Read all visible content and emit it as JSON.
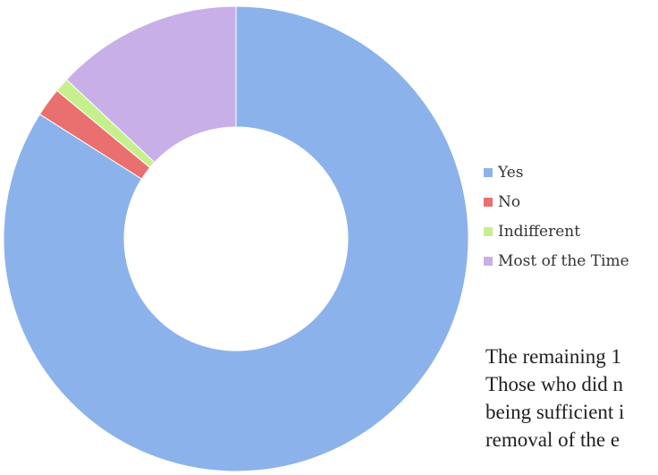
{
  "chart_data": {
    "type": "pie",
    "donut": true,
    "title": "",
    "categories": [
      "Yes",
      "No",
      "Indifferent",
      "Most of the Time"
    ],
    "values": [
      84,
      2,
      1,
      13
    ],
    "colors": [
      "#8cb2ec",
      "#ea6f6f",
      "#c6f08e",
      "#c9afe8"
    ],
    "legend_position": "right"
  },
  "text_block": {
    "lines": [
      "The remaining 1",
      "Those who did n",
      "being sufficient i",
      "removal of the e"
    ]
  }
}
